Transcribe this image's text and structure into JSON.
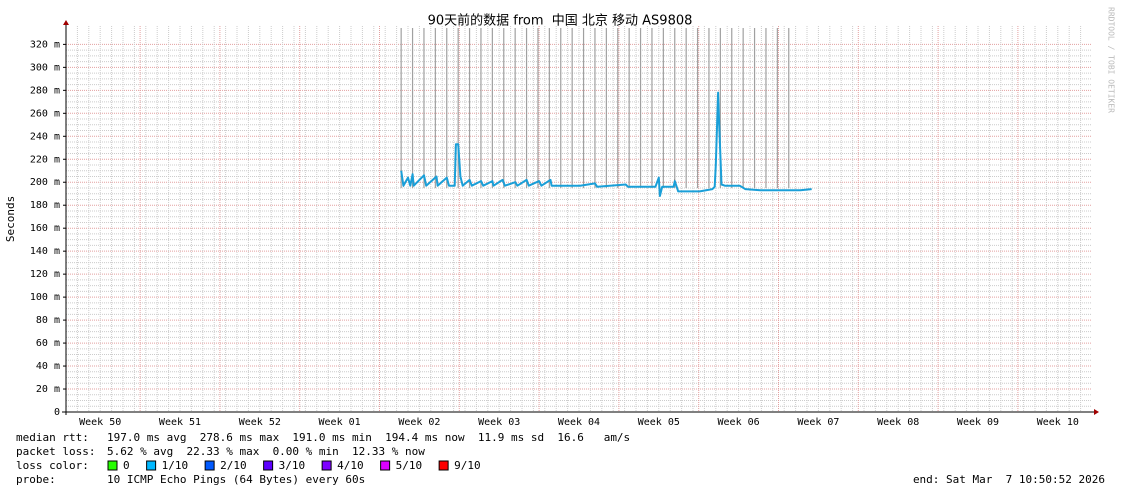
{
  "chart_data": {
    "type": "line",
    "title": "90天前的数据 from  中国 北京 移动 AS9808",
    "ylabel": "Seconds",
    "watermark": "RRDTOOL / TOBI OETIKER",
    "xlim": [
      0,
      90
    ],
    "xticks": [
      {
        "value": 3,
        "label": "Week 50"
      },
      {
        "value": 10,
        "label": "Week 51"
      },
      {
        "value": 17,
        "label": "Week 52"
      },
      {
        "value": 24,
        "label": "Week 01"
      },
      {
        "value": 31,
        "label": "Week 02"
      },
      {
        "value": 38,
        "label": "Week 03"
      },
      {
        "value": 45,
        "label": "Week 04"
      },
      {
        "value": 52,
        "label": "Week 05"
      },
      {
        "value": 59,
        "label": "Week 06"
      },
      {
        "value": 66,
        "label": "Week 07"
      },
      {
        "value": 73,
        "label": "Week 08"
      },
      {
        "value": 80,
        "label": "Week 09"
      },
      {
        "value": 87,
        "label": "Week 10"
      }
    ],
    "ylim": [
      0,
      336
    ],
    "yticks": [
      0,
      {
        "value": 20,
        "label": "20 m"
      },
      {
        "value": 40,
        "label": "40 m"
      },
      {
        "value": 60,
        "label": "60 m"
      },
      {
        "value": 80,
        "label": "80 m"
      },
      {
        "value": 100,
        "label": "100 m"
      },
      {
        "value": 120,
        "label": "120 m"
      },
      {
        "value": 140,
        "label": "140 m"
      },
      {
        "value": 160,
        "label": "160 m"
      },
      {
        "value": 180,
        "label": "180 m"
      },
      {
        "value": 200,
        "label": "200 m"
      },
      {
        "value": 220,
        "label": "220 m"
      },
      {
        "value": 240,
        "label": "240 m"
      },
      {
        "value": 260,
        "label": "260 m"
      },
      {
        "value": 280,
        "label": "280 m"
      },
      {
        "value": 300,
        "label": "300 m"
      },
      {
        "value": 320,
        "label": "320 m"
      }
    ],
    "grid": true,
    "event_x": [
      29.4,
      30.4,
      31.4,
      32.4,
      33.4,
      34.4,
      35.4,
      36.4,
      37.4,
      38.4,
      39.4,
      40.4,
      41.4,
      42.4,
      43.4,
      44.4,
      45.4,
      46.4,
      47.4,
      48.4,
      49.4,
      50.4,
      51.4,
      52.4,
      53.4,
      54.4,
      55.4,
      56.4,
      57.4,
      58.4,
      59.4,
      60.4,
      61.4,
      62.4,
      63.4
    ],
    "event_color": "#a0a0a0",
    "series": [
      {
        "color": "#1a9fd8",
        "x": [
          29.4,
          29.6,
          30.0,
          30.2,
          30.4,
          30.5,
          31.4,
          31.6,
          32.5,
          32.6,
          33.4,
          33.6,
          34.1,
          34.2,
          34.4,
          34.6,
          34.8,
          35.4,
          35.6,
          36.4,
          36.6,
          37.4,
          37.5,
          38.3,
          38.5,
          39.4,
          39.6,
          40.4,
          40.6,
          41.5,
          41.7,
          42.5,
          42.6,
          43.5,
          45.1,
          46.4,
          46.6,
          49.1,
          49.3,
          50.8,
          51.7,
          52.0,
          52.1,
          52.3,
          53.3,
          53.4,
          53.7,
          55.6,
          56.7,
          56.9,
          57.0,
          57.2,
          57.3,
          57.5,
          57.8,
          59.1,
          59.6,
          60.9,
          63.5,
          64.4,
          65.4
        ],
        "values": [
          210,
          197,
          204,
          197,
          207,
          197,
          206,
          197,
          205,
          197,
          204,
          197,
          197,
          233,
          233,
          205,
          197,
          202,
          197,
          201,
          197,
          201,
          197,
          202,
          197,
          200,
          197,
          202,
          197,
          201,
          197,
          202,
          197,
          197,
          197,
          199,
          196,
          198,
          196,
          196,
          196,
          204,
          188,
          196,
          196,
          201,
          192,
          192,
          194,
          196,
          215,
          278,
          250,
          198,
          197,
          197,
          194,
          193,
          193,
          193,
          194
        ]
      }
    ]
  },
  "legend": {
    "rtt_label": "median rtt:",
    "rtt_stats": "197.0 ms avg  278.6 ms max  191.0 ms min  194.4 ms now  11.9 ms sd  16.6   am/s",
    "loss_label": "packet loss:",
    "loss_stats": "5.62 % avg  22.33 % max  0.00 % min  12.33 % now",
    "color_label": "loss color:",
    "colors": [
      {
        "name": "0",
        "color": "#26ff00"
      },
      {
        "name": "1/10",
        "color": "#00b8ff"
      },
      {
        "name": "2/10",
        "color": "#0059ff"
      },
      {
        "name": "3/10",
        "color": "#5e00ff"
      },
      {
        "name": "4/10",
        "color": "#7e00ff"
      },
      {
        "name": "5/10",
        "color": "#dd00ff"
      },
      {
        "name": "9/10",
        "color": "#ff0000"
      }
    ],
    "probe_label": "probe:",
    "probe": "10 ICMP Echo Pings (64 Bytes) every 60s",
    "end": "end: Sat Mar  7 10:50:52 2026"
  }
}
